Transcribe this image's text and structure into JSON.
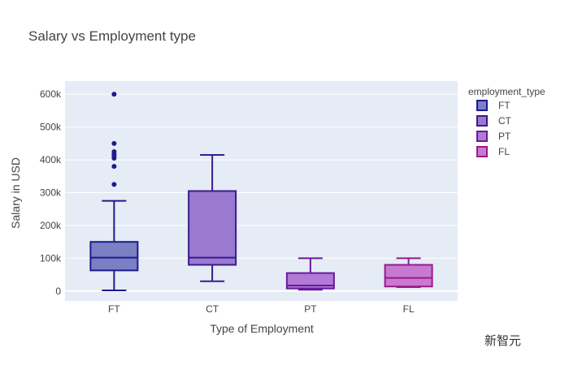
{
  "chart_data": {
    "type": "box",
    "title": "Salary vs Employment type",
    "xlabel": "Type of Employment",
    "ylabel": "Salary in USD",
    "ylim": [
      -30000,
      640000
    ],
    "y_ticks": [
      0,
      100000,
      200000,
      300000,
      400000,
      500000,
      600000
    ],
    "y_tick_labels": [
      "0",
      "100k",
      "200k",
      "300k",
      "400k",
      "500k",
      "600k"
    ],
    "categories": [
      "FT",
      "CT",
      "PT",
      "FL"
    ],
    "legend": {
      "title": "employment_type",
      "placement": "right",
      "entries": [
        "FT",
        "CT",
        "PT",
        "FL"
      ]
    },
    "grid": true,
    "series": [
      {
        "name": "FT",
        "min": 2000,
        "q1": 63000,
        "median": 102000,
        "q3": 150000,
        "max": 275000,
        "outliers": [
          325000,
          380000,
          405000,
          412000,
          418000,
          425000,
          450000,
          600000
        ],
        "fill": "#7b7fc4",
        "stroke": "#1f1a8c"
      },
      {
        "name": "CT",
        "min": 30000,
        "q1": 80000,
        "median": 102000,
        "q3": 305000,
        "max": 415000,
        "outliers": [],
        "fill": "#9a7ad1",
        "stroke": "#3a1a8c"
      },
      {
        "name": "PT",
        "min": 4000,
        "q1": 8000,
        "median": 17000,
        "q3": 55000,
        "max": 100000,
        "outliers": [],
        "fill": "#b07ad6",
        "stroke": "#6a1a9c"
      },
      {
        "name": "FL",
        "min": 12000,
        "q1": 14000,
        "median": 40000,
        "q3": 80000,
        "max": 100000,
        "outliers": [],
        "fill": "#c77ad0",
        "stroke": "#9a1a8c"
      }
    ]
  },
  "watermark": "新智元"
}
